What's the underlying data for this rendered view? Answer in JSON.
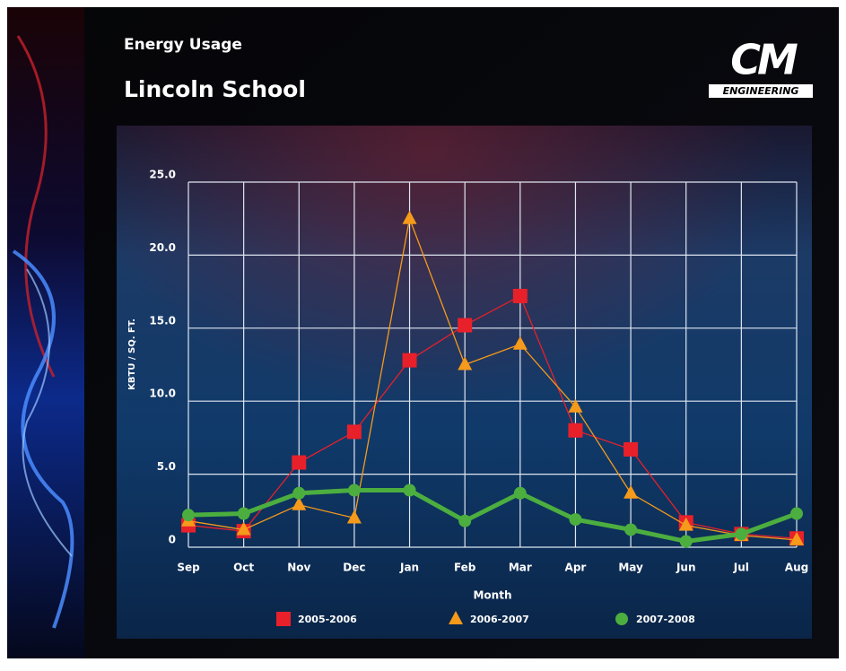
{
  "chart_data": {
    "type": "line",
    "title": "Energy Usage",
    "subtitle": "Lincoln School",
    "x_label": "Month",
    "y_label": "KBTU / SQ. FT.",
    "categories": [
      "Sep",
      "Oct",
      "Nov",
      "Dec",
      "Jan",
      "Feb",
      "Mar",
      "Apr",
      "May",
      "Jun",
      "Jul",
      "Aug"
    ],
    "series": [
      {
        "name": "2005-2006",
        "color": "#e8202a",
        "marker": "square",
        "values": [
          1.5,
          1.1,
          5.8,
          7.9,
          12.8,
          15.2,
          17.2,
          8.0,
          6.7,
          1.7,
          0.9,
          0.6
        ]
      },
      {
        "name": "2006-2007",
        "color": "#f59a1a",
        "marker": "triangle",
        "values": [
          1.8,
          1.2,
          2.9,
          2.0,
          22.5,
          12.5,
          13.9,
          9.6,
          3.7,
          1.5,
          0.8,
          0.5
        ]
      },
      {
        "name": "2007-2008",
        "color": "#4cae3f",
        "marker": "circle",
        "values": [
          2.2,
          2.3,
          3.7,
          3.9,
          3.9,
          1.8,
          3.7,
          1.9,
          1.2,
          0.4,
          0.9,
          2.3
        ]
      }
    ],
    "ylim": [
      0,
      25
    ],
    "yticks": [
      0,
      {
        "value": 5,
        "label": "5.0"
      },
      {
        "value": 10,
        "label": "10.0"
      },
      {
        "value": 15,
        "label": "15.0"
      },
      {
        "value": 20,
        "label": "20.0"
      },
      {
        "value": 25,
        "label": "25.0"
      }
    ],
    "grid": true,
    "legend": "bottom"
  },
  "logo": {
    "mark": "CM",
    "label": "ENGINEERING"
  }
}
